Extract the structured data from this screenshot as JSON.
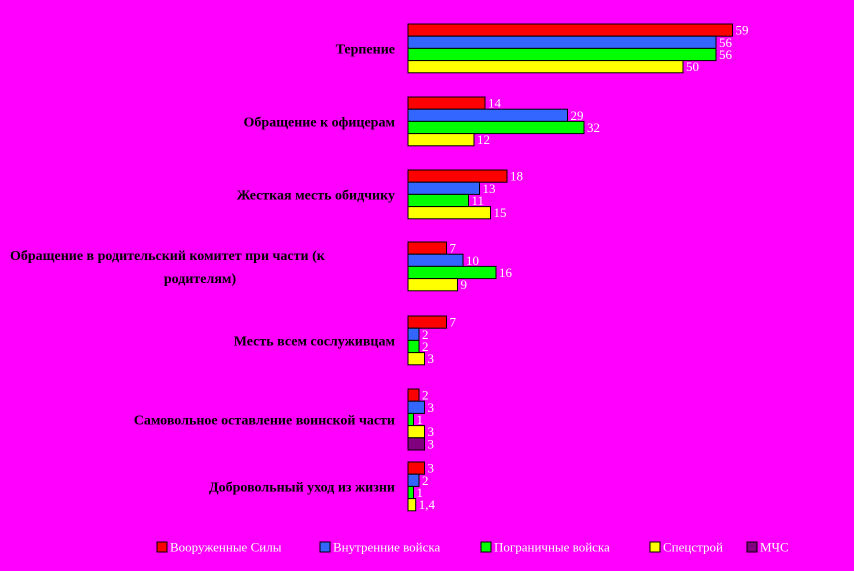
{
  "chart_data": {
    "type": "bar",
    "orientation": "horizontal",
    "categories": [
      "Терпение",
      "Обращение к офицерам",
      "Жесткая месть обидчику",
      "Обращение в родительский комитет при части (к родителям)",
      "Месть всем сослуживцам",
      "Самовольное оставление воинской части",
      "Добровольный уход из жизни"
    ],
    "series": [
      {
        "name": "Вооруженные Силы",
        "color": "#ff0000",
        "values": [
          59,
          14,
          18,
          7,
          7,
          2,
          3
        ],
        "labels": [
          "59",
          "14",
          "18",
          "7",
          "7",
          "2",
          "3"
        ]
      },
      {
        "name": "Внутренние войска",
        "color": "#3366ff",
        "values": [
          56,
          29,
          13,
          10,
          2,
          3,
          2
        ],
        "labels": [
          "56",
          "29",
          "13",
          "10",
          "2",
          "3",
          "2"
        ]
      },
      {
        "name": "Пограничные войска",
        "color": "#00ff00",
        "values": [
          56,
          32,
          11,
          16,
          2,
          1,
          1
        ],
        "labels": [
          "56",
          "32",
          "11",
          "16",
          "2",
          "1",
          "1"
        ]
      },
      {
        "name": "Спецстрой",
        "color": "#ffff00",
        "values": [
          50,
          12,
          15,
          9,
          3,
          3,
          1.4
        ],
        "labels": [
          "50",
          "12",
          "15",
          "9",
          "3",
          "3",
          "1,4"
        ]
      },
      {
        "name": "МЧС",
        "color": "#800080",
        "values": [
          null,
          null,
          null,
          null,
          null,
          3,
          null
        ],
        "labels": [
          "",
          "",
          "",
          "",
          "",
          "3",
          ""
        ]
      }
    ],
    "xlim": [
      0,
      60
    ],
    "grid": false,
    "legend_position": "bottom",
    "title": "",
    "xlabel": "",
    "ylabel": ""
  }
}
